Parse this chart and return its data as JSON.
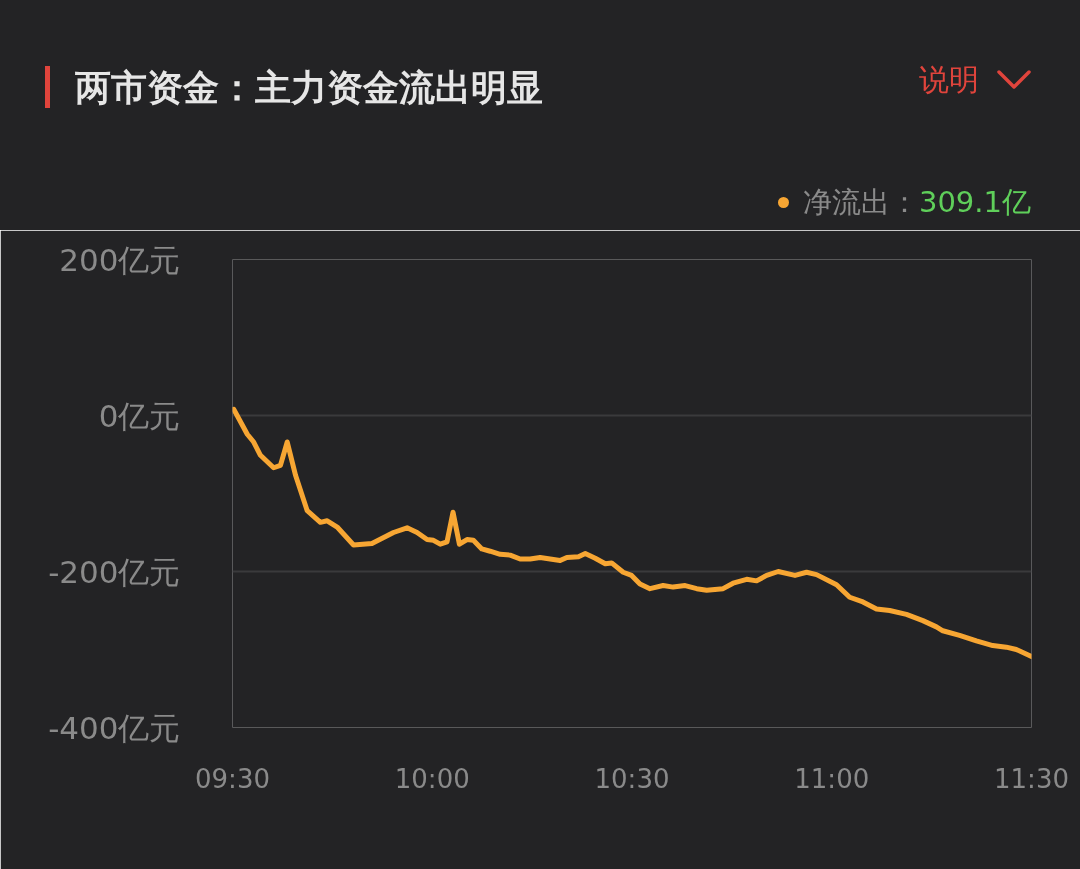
{
  "chart_data": {
    "type": "line",
    "title": "两市资金：主力资金流出明显",
    "annotations": [
      "309.1亿",
      "说明"
    ],
    "xlim": [
      9.5,
      11.5
    ],
    "xticks": [
      {
        "value": 9.5,
        "label": "09:30"
      },
      {
        "value": 10,
        "label": "10:00"
      },
      {
        "value": 10.5,
        "label": "10:30"
      },
      {
        "value": 11,
        "label": "11:00"
      },
      {
        "value": 11.5,
        "label": "11:30"
      }
    ],
    "ylim": [
      -400,
      200
    ],
    "yticks": [
      {
        "value": 200,
        "label": "200亿元"
      },
      {
        "value": 0,
        "label": "0亿元"
      },
      {
        "value": -200,
        "label": "-200亿元"
      },
      {
        "value": -400,
        "label": "-400亿元"
      }
    ],
    "grid": "y",
    "legend": "top right",
    "series": [
      {
        "name": "净流出：",
        "color": "#f7a633",
        "x": [
          9.503,
          9.537,
          9.553,
          9.57,
          9.603,
          9.62,
          9.637,
          9.658,
          9.687,
          9.72,
          9.737,
          9.762,
          9.803,
          9.849,
          9.903,
          9.937,
          9.962,
          9.987,
          10.003,
          10.02,
          10.037,
          10.052,
          10.068,
          10.087,
          10.103,
          10.124,
          10.145,
          10.17,
          10.195,
          10.22,
          10.245,
          10.27,
          10.295,
          10.32,
          10.337,
          10.366,
          10.383,
          10.408,
          10.433,
          10.449,
          10.478,
          10.499,
          10.52,
          10.545,
          10.578,
          10.603,
          10.633,
          10.662,
          10.687,
          10.728,
          10.753,
          10.787,
          10.812,
          10.837,
          10.866,
          10.908,
          10.937,
          10.962,
          11.012,
          11.045,
          11.078,
          11.112,
          11.145,
          11.187,
          11.228,
          11.262,
          11.278,
          11.32,
          11.362,
          11.403,
          11.437,
          11.462,
          11.5
        ],
        "values": [
          8,
          -24,
          -34,
          -51,
          -67,
          -64,
          -34,
          -77,
          -122,
          -137,
          -135,
          -143,
          -166,
          -164,
          -150,
          -144,
          -150,
          -159,
          -160,
          -165,
          -162,
          -124,
          -165,
          -159,
          -160,
          -171,
          -174,
          -178,
          -179,
          -184,
          -184,
          -182,
          -184,
          -186,
          -182,
          -181,
          -177,
          -183,
          -190,
          -189,
          -201,
          -205,
          -216,
          -222,
          -218,
          -220,
          -218,
          -222,
          -224,
          -222,
          -215,
          -210,
          -212,
          -205,
          -200,
          -205,
          -201,
          -204,
          -217,
          -233,
          -239,
          -248,
          -250,
          -255,
          -263,
          -271,
          -276,
          -282,
          -289,
          -295,
          -297,
          -300,
          -309.1
        ]
      }
    ]
  }
}
